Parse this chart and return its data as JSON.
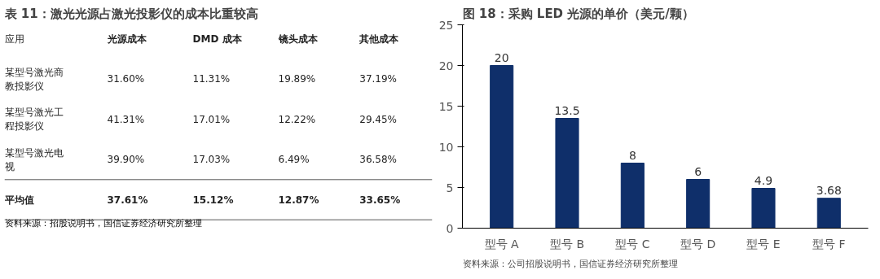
{
  "chart_data": [
    {
      "type": "other",
      "title": "表 11：激光光源占激光投影仪的成本比重较高",
      "annotations": [
        "应用",
        "光源成本",
        "DMD 成本",
        "镜头成本",
        "其他成本",
        "某型号激光商教投影仪",
        "31.60%",
        "11.31%",
        "19.89%",
        "37.19%",
        "某型号激光工程投影仪",
        "41.31%",
        "17.01%",
        "12.22%",
        "29.45%",
        "某型号激光电视",
        "39.90%",
        "17.03%",
        "6.49%",
        "36.58%",
        "平均值",
        "37.61%",
        "15.12%",
        "12.87%",
        "33.65%",
        "资料来源：招股说明书，国信证券经济研究所整理"
      ]
    },
    {
      "type": "bar",
      "title": "图 18：采购 LED 光源的单价（美元/颗）",
      "categories": [
        "型号 A",
        "型号 B",
        "型号 C",
        "型号 D",
        "型号 E",
        "型号 F"
      ],
      "values": [
        20,
        13.5,
        8,
        6,
        4.9,
        3.68
      ],
      "color": "#0f2f6a",
      "ylim": [
        0,
        25
      ],
      "yticks": [
        0,
        5,
        10,
        15,
        20,
        25
      ],
      "grid": false,
      "data_labels": true,
      "annotations": [
        "资料来源：公司招股说明书，国信证券经济研究所整理"
      ]
    }
  ]
}
